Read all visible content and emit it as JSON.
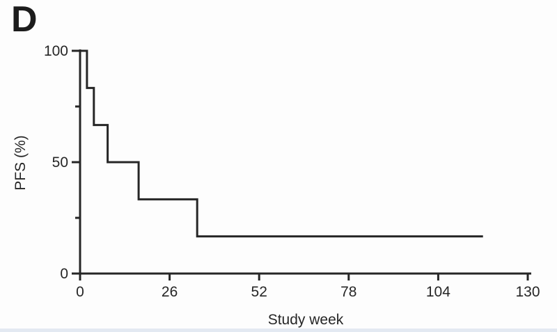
{
  "panel_label": "D",
  "colors": {
    "line": "#262626",
    "axis": "#262626",
    "text": "#262626",
    "background": "#fdfdfd",
    "bottom_strip": "#e3e9f2"
  },
  "chart_data": {
    "type": "line",
    "subtype": "kaplan-meier-step",
    "title": "",
    "xlabel": "Study week",
    "ylabel": "PFS (%)",
    "xlim": [
      0,
      130
    ],
    "ylim": [
      0,
      100
    ],
    "x_ticks": [
      0,
      26,
      52,
      78,
      104,
      130
    ],
    "y_ticks_major": [
      0,
      50,
      100
    ],
    "y_ticks_minor": [
      25,
      75
    ],
    "grid": false,
    "legend_position": "none",
    "series": [
      {
        "name": "PFS",
        "points": [
          [
            0,
            100
          ],
          [
            2,
            100
          ],
          [
            2,
            83.3
          ],
          [
            4,
            83.3
          ],
          [
            4,
            66.7
          ],
          [
            8,
            66.7
          ],
          [
            8,
            50
          ],
          [
            17,
            50
          ],
          [
            17,
            33.3
          ],
          [
            34,
            33.3
          ],
          [
            34,
            16.7
          ],
          [
            117,
            16.7
          ]
        ]
      }
    ]
  }
}
